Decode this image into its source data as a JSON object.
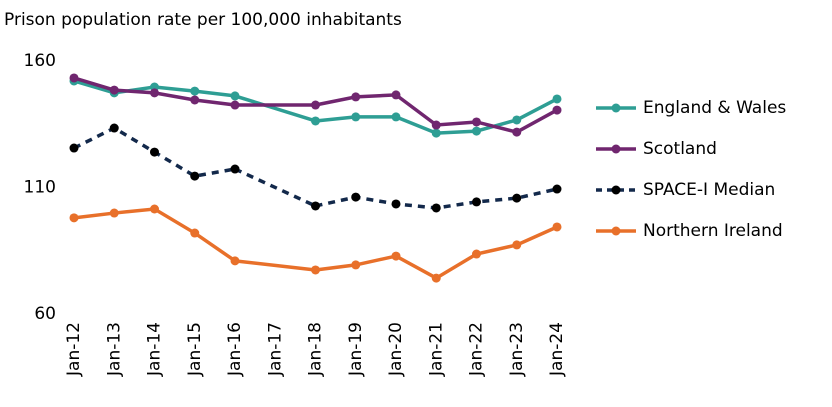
{
  "chart_data": {
    "type": "line",
    "title": "Prison population rate per 100,000 inhabitants",
    "categories": [
      "Jan-12",
      "Jan-13",
      "Jan-14",
      "Jan-15",
      "Jan-16",
      "Jan-17",
      "Jan-18",
      "Jan-19",
      "Jan-20",
      "Jan-21",
      "Jan-22",
      "Jan-23",
      "Jan-24"
    ],
    "series": [
      {
        "name": "England & Wales",
        "color": "#2e9e94",
        "dashed": false,
        "values": [
          152.1,
          147.4,
          149.7,
          148.1,
          146.2,
          null,
          136.3,
          137.9,
          137.9,
          131.5,
          132.3,
          136.7,
          145
        ]
      },
      {
        "name": "Scotland",
        "color": "#70266f",
        "dashed": false,
        "values": [
          153.3,
          148.5,
          147.4,
          144.6,
          142.6,
          null,
          142.6,
          145.8,
          146.6,
          134.7,
          135.9,
          131.9,
          140.6
        ]
      },
      {
        "name": "SPACE-I Median",
        "color": "#13294b",
        "dashed": true,
        "values": [
          125.6,
          133.5,
          124,
          114.5,
          117.3,
          null,
          102.7,
          106.2,
          103.5,
          101.9,
          104.3,
          105.8,
          109.4
        ]
      },
      {
        "name": "Northern Ireland",
        "color": "#e8702a",
        "dashed": false,
        "values": [
          98,
          99.9,
          101.5,
          92,
          81,
          null,
          77.4,
          79.4,
          82.9,
          74.2,
          83.7,
          87.3,
          94.4
        ]
      }
    ],
    "ylim": [
      60,
      160
    ],
    "yticks": [
      60,
      110,
      160
    ],
    "grid": false,
    "legend": "right"
  }
}
